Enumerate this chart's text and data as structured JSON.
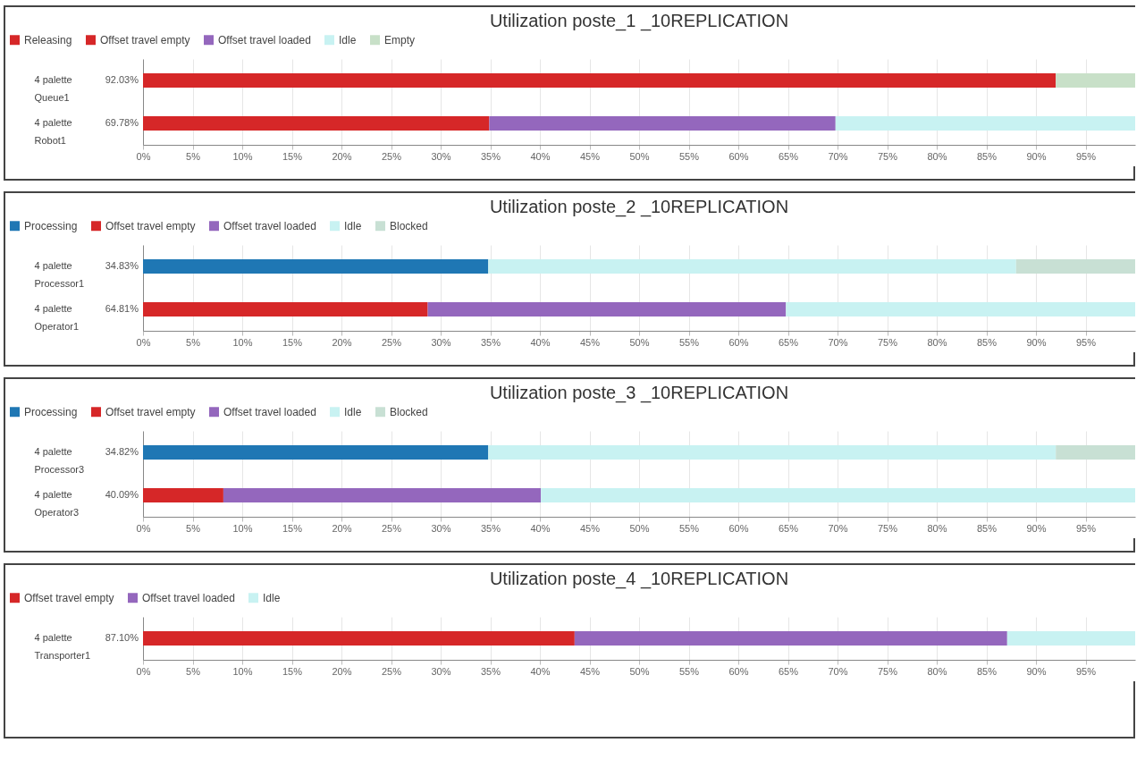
{
  "chart_data": [
    {
      "type": "bar",
      "orientation": "horizontal",
      "stacked": true,
      "title": "Utilization poste_1 _10REPLICATION",
      "categories": [
        "4 palette Queue1",
        "4 palette Robot1"
      ],
      "annotations": [
        "92.03%",
        "69.78%"
      ],
      "legend": "top left",
      "grid": "x",
      "xlim": [
        0,
        100
      ],
      "xticks": [
        {
          "value": 0,
          "label": "0%"
        },
        {
          "value": 5,
          "label": "5%"
        },
        {
          "value": 10,
          "label": "10%"
        },
        {
          "value": 15,
          "label": "15%"
        },
        {
          "value": 20,
          "label": "20%"
        },
        {
          "value": 25,
          "label": "25%"
        },
        {
          "value": 30,
          "label": "30%"
        },
        {
          "value": 35,
          "label": "35%"
        },
        {
          "value": 40,
          "label": "40%"
        },
        {
          "value": 45,
          "label": "45%"
        },
        {
          "value": 50,
          "label": "50%"
        },
        {
          "value": 55,
          "label": "55%"
        },
        {
          "value": 60,
          "label": "60%"
        },
        {
          "value": 65,
          "label": "65%"
        },
        {
          "value": 70,
          "label": "70%"
        },
        {
          "value": 75,
          "label": "75%"
        },
        {
          "value": 80,
          "label": "80%"
        },
        {
          "value": 85,
          "label": "85%"
        },
        {
          "value": 90,
          "label": "90%"
        },
        {
          "value": 95,
          "label": "95%"
        }
      ],
      "series": [
        {
          "name": "Releasing",
          "color": "#d62728",
          "values": [
            92,
            null
          ]
        },
        {
          "name": "Offset travel empty",
          "color": "#d62728",
          "values": [
            null,
            34.9
          ]
        },
        {
          "name": "Offset travel loaded",
          "color": "#9467bd",
          "values": [
            null,
            34.9
          ]
        },
        {
          "name": "Idle",
          "color": "#c8f2f2",
          "values": [
            null,
            30.2
          ]
        },
        {
          "name": "Empty",
          "color": "#c8e0c8",
          "values": [
            8,
            null
          ]
        }
      ]
    },
    {
      "type": "bar",
      "orientation": "horizontal",
      "stacked": true,
      "title": "Utilization poste_2 _10REPLICATION",
      "categories": [
        "4 palette Processor1",
        "4 palette Operator1"
      ],
      "annotations": [
        "34.83%",
        "64.81%"
      ],
      "legend": "top left",
      "grid": "x",
      "xlim": [
        0,
        100
      ],
      "xticks": [
        {
          "value": 0,
          "label": "0%"
        },
        {
          "value": 5,
          "label": "5%"
        },
        {
          "value": 10,
          "label": "10%"
        },
        {
          "value": 15,
          "label": "15%"
        },
        {
          "value": 20,
          "label": "20%"
        },
        {
          "value": 25,
          "label": "25%"
        },
        {
          "value": 30,
          "label": "30%"
        },
        {
          "value": 35,
          "label": "35%"
        },
        {
          "value": 40,
          "label": "40%"
        },
        {
          "value": 45,
          "label": "45%"
        },
        {
          "value": 50,
          "label": "50%"
        },
        {
          "value": 55,
          "label": "55%"
        },
        {
          "value": 60,
          "label": "60%"
        },
        {
          "value": 65,
          "label": "65%"
        },
        {
          "value": 70,
          "label": "70%"
        },
        {
          "value": 75,
          "label": "75%"
        },
        {
          "value": 80,
          "label": "80%"
        },
        {
          "value": 85,
          "label": "85%"
        },
        {
          "value": 90,
          "label": "90%"
        },
        {
          "value": 95,
          "label": "95%"
        }
      ],
      "series": [
        {
          "name": "Processing",
          "color": "#1f77b4",
          "values": [
            34.8,
            null
          ]
        },
        {
          "name": "Offset travel empty",
          "color": "#d62728",
          "values": [
            null,
            28.7
          ]
        },
        {
          "name": "Offset travel loaded",
          "color": "#9467bd",
          "values": [
            null,
            36.1
          ]
        },
        {
          "name": "Idle",
          "color": "#c8f2f2",
          "values": [
            53.2,
            35.2
          ]
        },
        {
          "name": "Blocked",
          "color": "#c8e0d4",
          "values": [
            12,
            null
          ]
        }
      ]
    },
    {
      "type": "bar",
      "orientation": "horizontal",
      "stacked": true,
      "title": "Utilization poste_3 _10REPLICATION",
      "categories": [
        "4 palette Processor3",
        "4 palette Operator3"
      ],
      "annotations": [
        "34.82%",
        "40.09%"
      ],
      "legend": "top left",
      "grid": "x",
      "xlim": [
        0,
        100
      ],
      "xticks": [
        {
          "value": 0,
          "label": "0%"
        },
        {
          "value": 5,
          "label": "5%"
        },
        {
          "value": 10,
          "label": "10%"
        },
        {
          "value": 15,
          "label": "15%"
        },
        {
          "value": 20,
          "label": "20%"
        },
        {
          "value": 25,
          "label": "25%"
        },
        {
          "value": 30,
          "label": "30%"
        },
        {
          "value": 35,
          "label": "35%"
        },
        {
          "value": 40,
          "label": "40%"
        },
        {
          "value": 45,
          "label": "45%"
        },
        {
          "value": 50,
          "label": "50%"
        },
        {
          "value": 55,
          "label": "55%"
        },
        {
          "value": 60,
          "label": "60%"
        },
        {
          "value": 65,
          "label": "65%"
        },
        {
          "value": 70,
          "label": "70%"
        },
        {
          "value": 75,
          "label": "75%"
        },
        {
          "value": 80,
          "label": "80%"
        },
        {
          "value": 85,
          "label": "85%"
        },
        {
          "value": 90,
          "label": "90%"
        },
        {
          "value": 95,
          "label": "95%"
        }
      ],
      "series": [
        {
          "name": "Processing",
          "color": "#1f77b4",
          "values": [
            34.8,
            null
          ]
        },
        {
          "name": "Offset travel empty",
          "color": "#d62728",
          "values": [
            null,
            8.1
          ]
        },
        {
          "name": "Offset travel loaded",
          "color": "#9467bd",
          "values": [
            null,
            32
          ]
        },
        {
          "name": "Idle",
          "color": "#c8f2f2",
          "values": [
            57.2,
            59.9
          ]
        },
        {
          "name": "Blocked",
          "color": "#c8e0d4",
          "values": [
            8,
            null
          ]
        }
      ]
    },
    {
      "type": "bar",
      "orientation": "horizontal",
      "stacked": true,
      "title": "Utilization poste_4 _10REPLICATION",
      "categories": [
        "4 palette Transporter1"
      ],
      "annotations": [
        "87.10%"
      ],
      "legend": "top left",
      "grid": "x",
      "xlim": [
        0,
        100
      ],
      "xticks": [
        {
          "value": 0,
          "label": "0%"
        },
        {
          "value": 5,
          "label": "5%"
        },
        {
          "value": 10,
          "label": "10%"
        },
        {
          "value": 15,
          "label": "15%"
        },
        {
          "value": 20,
          "label": "20%"
        },
        {
          "value": 25,
          "label": "25%"
        },
        {
          "value": 30,
          "label": "30%"
        },
        {
          "value": 35,
          "label": "35%"
        },
        {
          "value": 40,
          "label": "40%"
        },
        {
          "value": 45,
          "label": "45%"
        },
        {
          "value": 50,
          "label": "50%"
        },
        {
          "value": 55,
          "label": "55%"
        },
        {
          "value": 60,
          "label": "60%"
        },
        {
          "value": 65,
          "label": "65%"
        },
        {
          "value": 70,
          "label": "70%"
        },
        {
          "value": 75,
          "label": "75%"
        },
        {
          "value": 80,
          "label": "80%"
        },
        {
          "value": 85,
          "label": "85%"
        },
        {
          "value": 90,
          "label": "90%"
        },
        {
          "value": 95,
          "label": "95%"
        }
      ],
      "series": [
        {
          "name": "Offset travel empty",
          "color": "#d62728",
          "values": [
            43.5
          ]
        },
        {
          "name": "Offset travel loaded",
          "color": "#9467bd",
          "values": [
            43.6
          ]
        },
        {
          "name": "Idle",
          "color": "#c8f2f2",
          "values": [
            12.9
          ]
        }
      ]
    }
  ]
}
